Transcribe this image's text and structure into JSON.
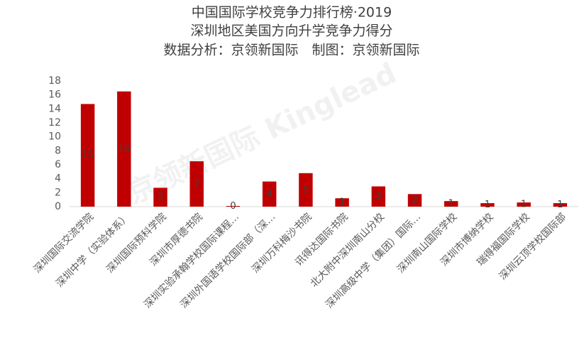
{
  "chart_data": {
    "type": "bar",
    "title": [
      "中国国际学校竞争力排行榜·2019",
      "深圳地区美国方向升学竞争力得分",
      "数据分析：京领新国际　制图：京领新国际"
    ],
    "watermark": "京领新国际 Kinglead",
    "categories": [
      "深圳国际交流学院",
      "深圳中学（实验体系）",
      "深圳国际预科学院",
      "深圳市厚德书院",
      "深圳实验承翰学校国际课程…",
      "深圳外国语学校国际部（深…",
      "深圳万科梅沙书院",
      "讯得达国际书院",
      "北大附中深圳南山分校",
      "深圳高级中学（集团）国际…",
      "深圳南山国际学校",
      "深圳市博纳学校",
      "瑞得福国际学校",
      "深圳云顶学校国际部"
    ],
    "values": [
      14.7,
      16.5,
      2.7,
      6.5,
      0.1,
      3.6,
      4.8,
      1.2,
      2.9,
      1.8,
      0.8,
      0.5,
      0.6,
      0.5
    ],
    "value_labels": [
      "15",
      "16",
      "3",
      "7",
      "0",
      "4",
      "5",
      "1",
      "3",
      "2",
      "1",
      "1",
      "1",
      "1"
    ],
    "color": "#c00000",
    "ylim": [
      0,
      18
    ],
    "yticks": [
      0,
      2,
      4,
      6,
      8,
      10,
      12,
      14,
      16,
      18
    ],
    "grid": false
  }
}
